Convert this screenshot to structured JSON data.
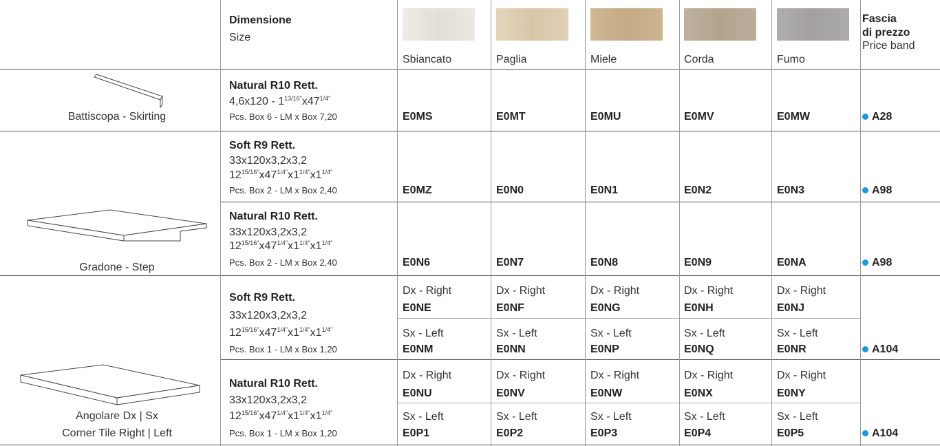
{
  "header": {
    "dimension": "Dimensione",
    "size": "Size",
    "colors": [
      "Sbiancato",
      "Paglia",
      "Miele",
      "Corda",
      "Fumo"
    ],
    "price_title": [
      "Fascia",
      "di prezzo"
    ],
    "price_sub": "Price band"
  },
  "products": [
    {
      "label": [
        "Battiscopa - Skirting"
      ],
      "rows": [
        {
          "finish": "Natural R10 Rett.",
          "imperial": [
            {
              "base": "4,6x120 - 1",
              "sup": "13/16\""
            },
            {
              "base": "x47",
              "sup": "1/4\""
            }
          ],
          "pcs": "Pcs. Box 6 - LM x Box 7,20",
          "codes": [
            "E0MS",
            "E0MT",
            "E0MU",
            "E0MV",
            "E0MW"
          ],
          "price": "A28"
        }
      ]
    },
    {
      "label": [
        "Gradone - Step"
      ],
      "rows": [
        {
          "finish": "Soft R9 Rett.",
          "size": "33x120x3,2x3,2",
          "imperial": [
            {
              "base": "12",
              "sup": "15/16\""
            },
            {
              "base": "x47",
              "sup": "1/4\""
            },
            {
              "base": "x1",
              "sup": "1/4\""
            },
            {
              "base": "x1",
              "sup": "1/4\""
            }
          ],
          "pcs": "Pcs. Box 2 - LM x Box 2,40",
          "codes": [
            "E0MZ",
            "E0N0",
            "E0N1",
            "E0N2",
            "E0N3"
          ],
          "price": "A98"
        },
        {
          "finish": "Natural R10 Rett.",
          "size": "33x120x3,2x3,2",
          "imperial": [
            {
              "base": "12",
              "sup": "15/16\""
            },
            {
              "base": "x47",
              "sup": "1/4\""
            },
            {
              "base": "x1",
              "sup": "1/4\""
            },
            {
              "base": "x1",
              "sup": "1/4\""
            }
          ],
          "pcs": "Pcs. Box 2 - LM x Box 2,40",
          "codes": [
            "E0N6",
            "E0N7",
            "E0N8",
            "E0N9",
            "E0NA"
          ],
          "price": "A98"
        }
      ]
    },
    {
      "label": [
        "Angolare Dx | Sx",
        "Corner Tile Right | Left"
      ],
      "rows": [
        {
          "finish": "Soft R9 Rett.",
          "size": "33x120x3,2x3,2",
          "imperial": [
            {
              "base": "12",
              "sup": "15/16\""
            },
            {
              "base": "x47",
              "sup": "1/4\""
            },
            {
              "base": "x1",
              "sup": "1/4\""
            },
            {
              "base": "x1",
              "sup": "1/4\""
            }
          ],
          "pcs": "Pcs. Box 1 - LM x Box 1,20",
          "variants": [
            {
              "label": "Dx - Right",
              "codes": [
                "E0NE",
                "E0NF",
                "E0NG",
                "E0NH",
                "E0NJ"
              ]
            },
            {
              "label": "Sx - Left",
              "codes": [
                "E0NM",
                "E0NN",
                "E0NP",
                "E0NQ",
                "E0NR"
              ]
            }
          ],
          "price": "A104"
        },
        {
          "finish": "Natural R10 Rett.",
          "size": "33x120x3,2x3,2",
          "imperial": [
            {
              "base": "12",
              "sup": "15/16\""
            },
            {
              "base": "x47",
              "sup": "1/4\""
            },
            {
              "base": "x1",
              "sup": "1/4\""
            },
            {
              "base": "x1",
              "sup": "1/4\""
            }
          ],
          "pcs": "Pcs. Box 1 - LM x Box 1,20",
          "variants": [
            {
              "label": "Dx - Right",
              "codes": [
                "E0NU",
                "E0NV",
                "E0NW",
                "E0NX",
                "E0NY"
              ]
            },
            {
              "label": "Sx - Left",
              "codes": [
                "E0P1",
                "E0P2",
                "E0P3",
                "E0P4",
                "E0P5"
              ]
            }
          ],
          "price": "A104"
        }
      ]
    }
  ]
}
